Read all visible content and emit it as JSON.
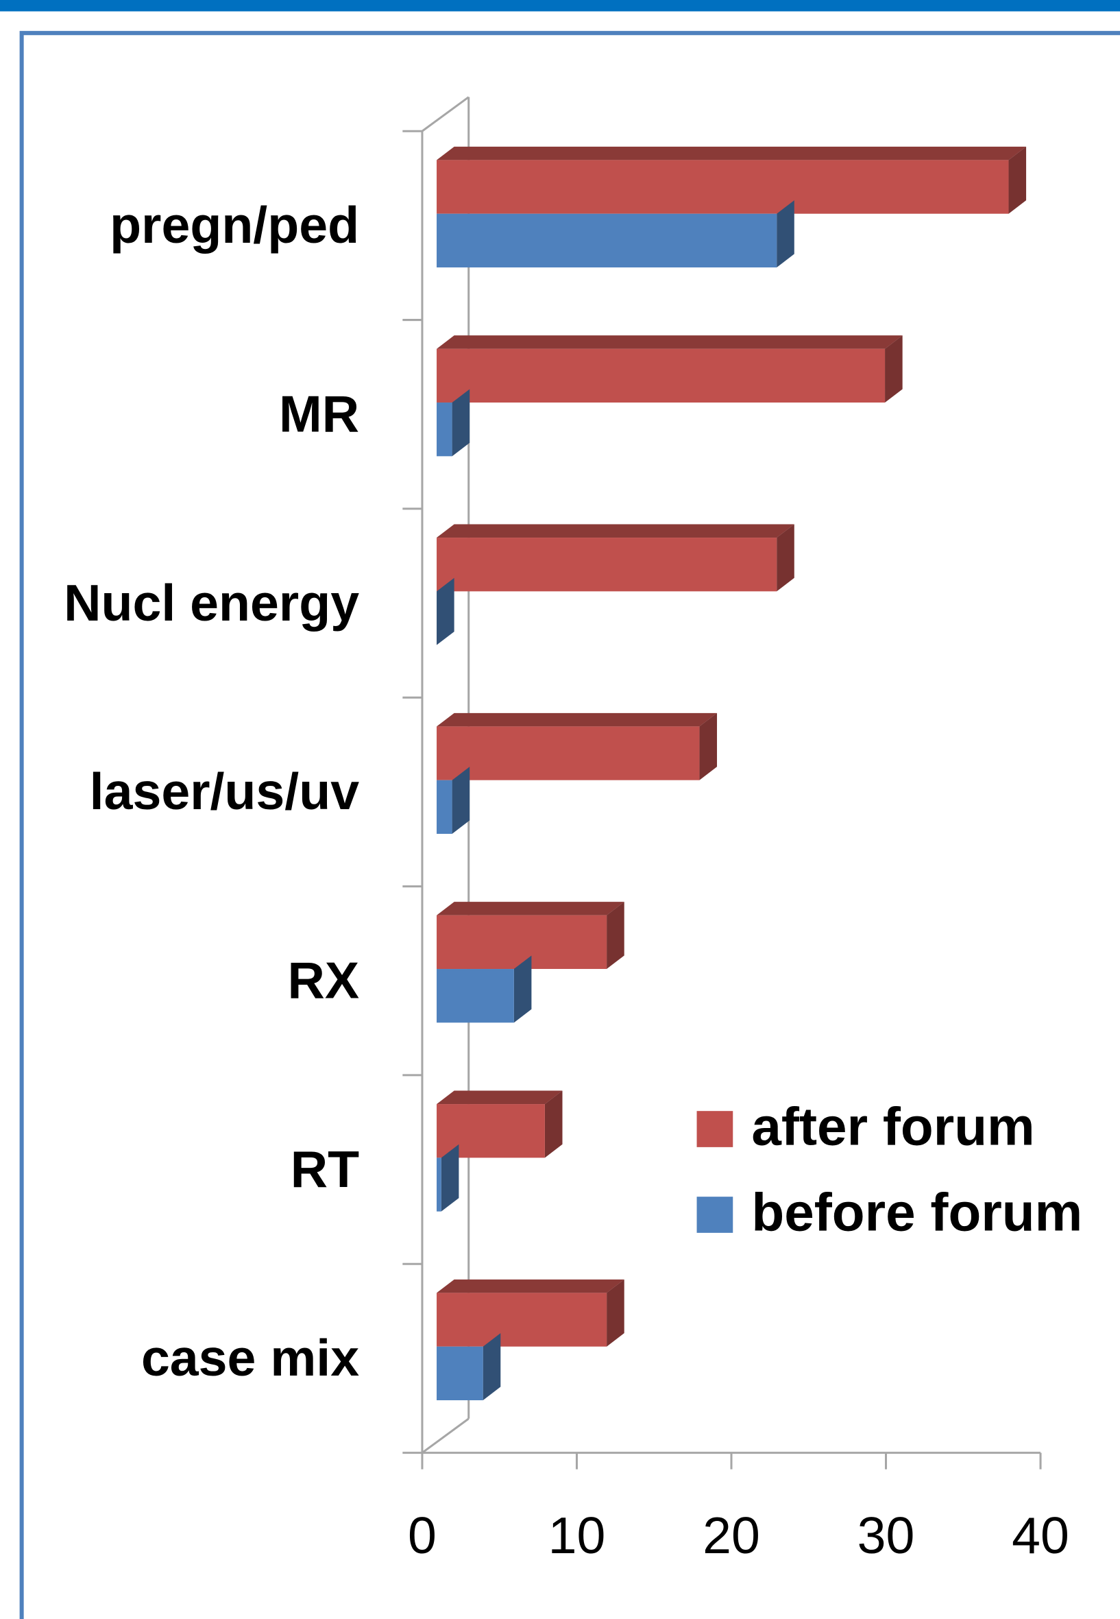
{
  "chart_data": {
    "type": "bar3d_horizontal",
    "categories": [
      "pregn/ped",
      "MR",
      "Nucl energy",
      "laser/us/uv",
      "RX",
      "RT",
      "case mix"
    ],
    "series": [
      {
        "name": "after forum",
        "color": "#c0504d",
        "values": [
          37,
          29,
          22,
          17,
          11,
          7,
          11
        ]
      },
      {
        "name": "before forum",
        "color": "#4f81bd",
        "values": [
          22,
          1,
          0,
          1,
          5,
          0.3,
          3
        ]
      }
    ],
    "xlim": [
      0,
      40
    ],
    "xticks": [
      0,
      10,
      20,
      30,
      40
    ]
  }
}
